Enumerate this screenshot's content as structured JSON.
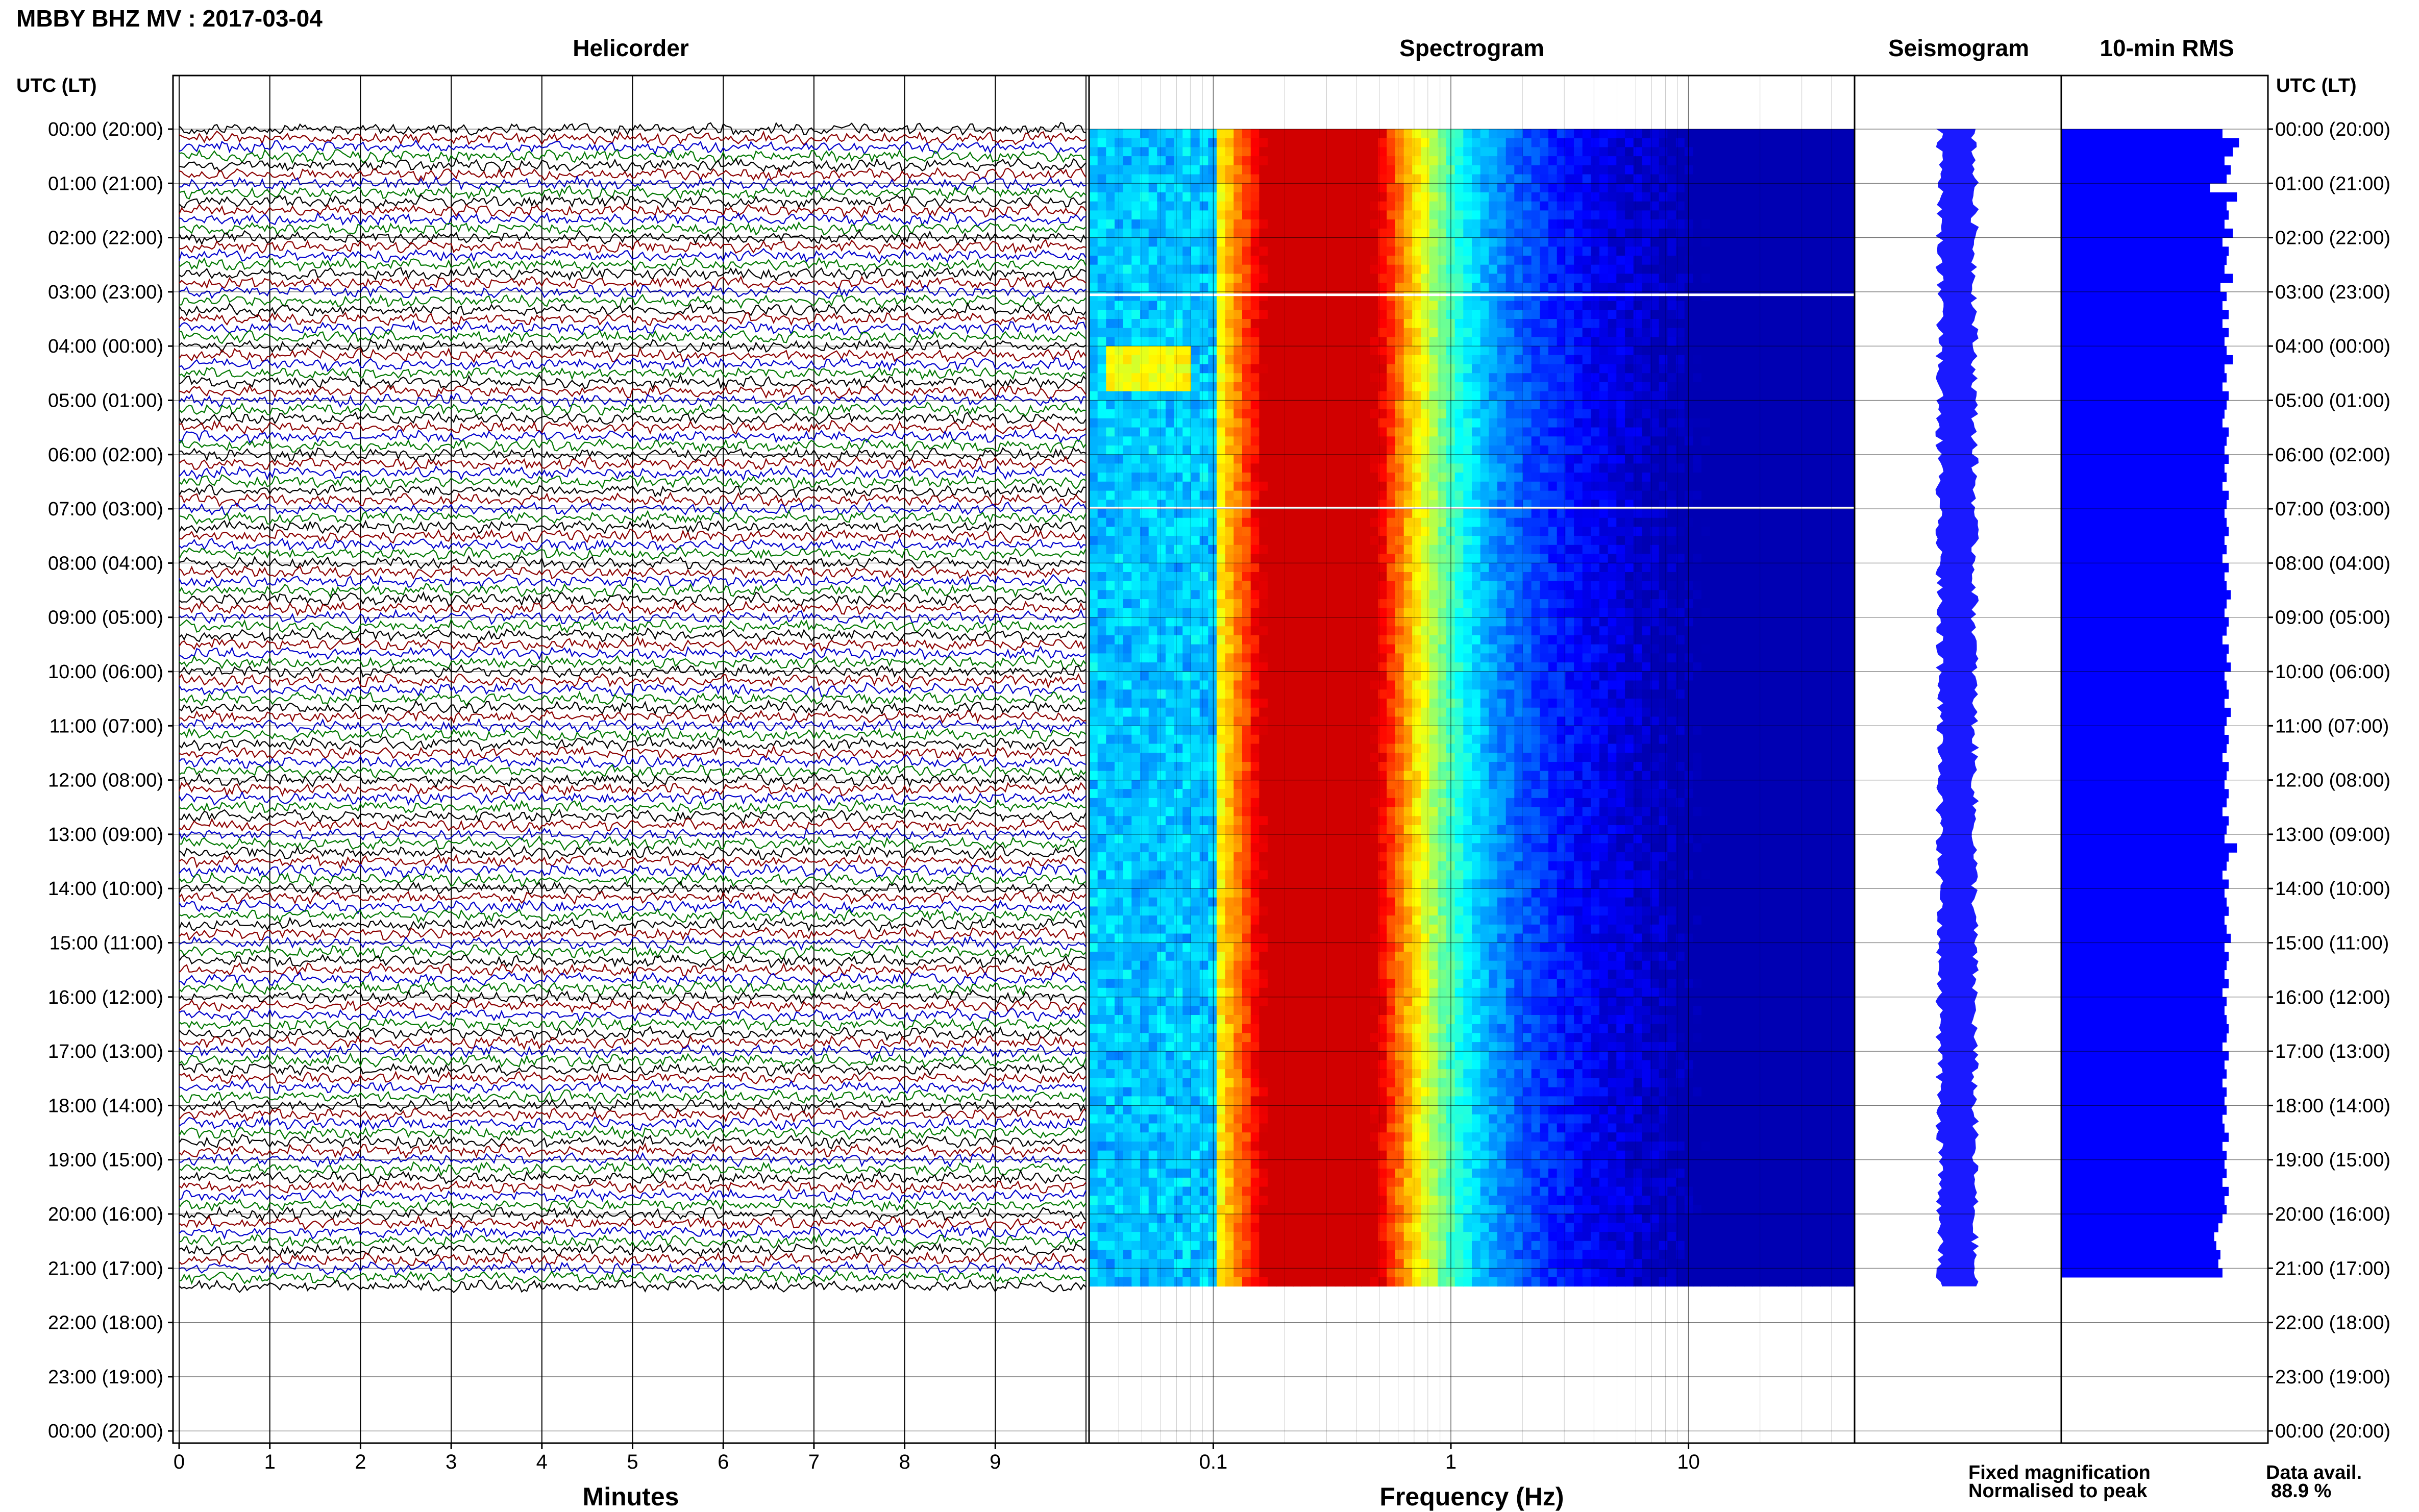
{
  "header": {
    "title": "MBBY BHZ MV : 2017-03-04"
  },
  "panels": {
    "helicorder": "Helicorder",
    "spectrogram": "Spectrogram",
    "seismogram": "Seismogram",
    "rms": "10-min RMS"
  },
  "time_axis": {
    "label_left": "UTC (LT)",
    "label_right": "UTC (LT)",
    "ticks": [
      "00:00 (20:00)",
      "01:00 (21:00)",
      "02:00 (22:00)",
      "03:00 (23:00)",
      "04:00 (00:00)",
      "05:00 (01:00)",
      "06:00 (02:00)",
      "07:00 (03:00)",
      "08:00 (04:00)",
      "09:00 (05:00)",
      "10:00 (06:00)",
      "11:00 (07:00)",
      "12:00 (08:00)",
      "13:00 (09:00)",
      "14:00 (10:00)",
      "15:00 (11:00)",
      "16:00 (12:00)",
      "17:00 (13:00)",
      "18:00 (14:00)",
      "19:00 (15:00)",
      "20:00 (16:00)",
      "21:00 (17:00)",
      "22:00 (18:00)",
      "23:00 (19:00)",
      "00:00 (20:00)"
    ]
  },
  "footer": {
    "fixed_magnification": "Fixed magnification",
    "normalised_to_peak": "Normalised to peak",
    "data_avail_label": "Data avail.",
    "data_avail_value": "88.9 %"
  },
  "colors": {
    "trace_colors": [
      "#000000",
      "#8b0000",
      "#0000cc",
      "#007700"
    ],
    "fixed_magnification": "#0000ff",
    "normalised_to_peak": "#ff0000",
    "rms_bar": "#0000ff",
    "seismogram": "#1a1aff"
  },
  "chart_data": [
    {
      "type": "line",
      "name": "helicorder",
      "title": "Helicorder",
      "xlabel": "Minutes",
      "x_ticks": [
        "0",
        "1",
        "2",
        "3",
        "4",
        "5",
        "6",
        "7",
        "8",
        "9"
      ],
      "xlim": [
        0,
        10
      ],
      "ylim_hours": [
        0,
        24
      ],
      "data_hours": [
        0,
        21.33
      ],
      "lines_per_hour": 6,
      "grid": true
    },
    {
      "type": "heatmap",
      "name": "spectrogram",
      "title": "Spectrogram",
      "xlabel": "Frequency (Hz)",
      "x_scale": "log",
      "x_ticks": [
        "0.1",
        "1",
        "10"
      ],
      "xlim_hz": [
        0.03,
        50
      ],
      "data_hours": [
        0,
        21.33
      ],
      "peak_band_hz": [
        0.2,
        0.4
      ],
      "colormap": "jet",
      "gaps_hours": [
        3.05,
        6.98
      ],
      "grid": true
    },
    {
      "type": "area",
      "name": "seismogram",
      "title": "Seismogram",
      "data_hours": [
        0,
        21.33
      ]
    },
    {
      "type": "bar",
      "name": "rms",
      "title": "10-min RMS",
      "orientation": "horizontal",
      "interval_minutes": 10,
      "values": [
        0.78,
        0.86,
        0.83,
        0.79,
        0.82,
        0.8,
        0.72,
        0.85,
        0.8,
        0.81,
        0.79,
        0.83,
        0.78,
        0.81,
        0.8,
        0.79,
        0.83,
        0.77,
        0.8,
        0.78,
        0.81,
        0.78,
        0.81,
        0.79,
        0.8,
        0.83,
        0.79,
        0.8,
        0.78,
        0.81,
        0.8,
        0.79,
        0.78,
        0.81,
        0.8,
        0.79,
        0.81,
        0.79,
        0.8,
        0.78,
        0.81,
        0.8,
        0.79,
        0.8,
        0.81,
        0.79,
        0.8,
        0.78,
        0.81,
        0.79,
        0.8,
        0.82,
        0.8,
        0.79,
        0.81,
        0.8,
        0.78,
        0.81,
        0.8,
        0.82,
        0.79,
        0.8,
        0.81,
        0.79,
        0.82,
        0.8,
        0.79,
        0.81,
        0.8,
        0.78,
        0.81,
        0.8,
        0.79,
        0.81,
        0.8,
        0.78,
        0.81,
        0.8,
        0.79,
        0.85,
        0.81,
        0.8,
        0.78,
        0.81,
        0.79,
        0.8,
        0.81,
        0.79,
        0.8,
        0.82,
        0.79,
        0.81,
        0.8,
        0.79,
        0.81,
        0.78,
        0.8,
        0.79,
        0.8,
        0.81,
        0.8,
        0.78,
        0.81,
        0.79,
        0.8,
        0.78,
        0.8,
        0.79,
        0.8,
        0.78,
        0.79,
        0.81,
        0.78,
        0.8,
        0.79,
        0.8,
        0.78,
        0.81,
        0.79,
        0.8,
        0.78,
        0.76,
        0.74,
        0.75,
        0.77,
        0.76,
        0.78
      ],
      "xlim": [
        0,
        1
      ]
    }
  ]
}
